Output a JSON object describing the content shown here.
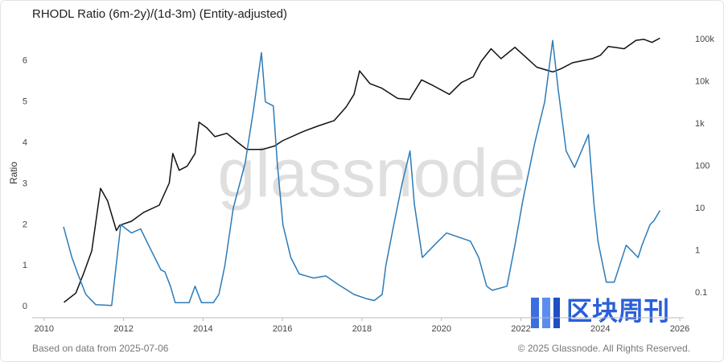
{
  "chart_data": {
    "type": "line",
    "title": "RHODL Ratio (6m-2y)/(1d-3m) (Entity-adjusted)",
    "y_label": "Ratio",
    "watermark": "glassnode",
    "logo_text": "区块周刊",
    "footer_left": "Based on data from 2025-07-06",
    "footer_right": "© 2025 Glassnode. All Rights Reserved.",
    "xlim": [
      2009.7,
      2026.1
    ],
    "xticks": [
      2010,
      2012,
      2014,
      2016,
      2018,
      2020,
      2022,
      2024,
      2026
    ],
    "ylim": [
      -0.27,
      6.7
    ],
    "yticks": [
      0,
      1,
      2,
      3,
      4,
      5,
      6
    ],
    "y2lim": [
      0.026,
      148000
    ],
    "y2scale": "log",
    "y2ticks": [
      0.1,
      1,
      10,
      100,
      {
        "value": 1000,
        "label": "1k"
      },
      {
        "value": 10000,
        "label": "10k"
      },
      {
        "value": 100000,
        "label": "100k"
      }
    ],
    "series": [
      {
        "color": "#2b7bb9",
        "axis": "y",
        "x": [
          2010.49,
          2010.7,
          2010.85,
          2011.05,
          2011.3,
          2011.7,
          2011.93,
          2012.2,
          2012.43,
          2012.63,
          2012.94,
          2013.04,
          2013.18,
          2013.3,
          2013.65,
          2013.8,
          2013.96,
          2014.26,
          2014.4,
          2014.55,
          2014.76,
          2015.06,
          2015.27,
          2015.47,
          2015.57,
          2015.77,
          2015.87,
          2016.01,
          2016.21,
          2016.42,
          2016.78,
          2017.09,
          2017.39,
          2017.8,
          2018.1,
          2018.31,
          2018.51,
          2018.6,
          2018.8,
          2019.01,
          2019.21,
          2019.32,
          2019.52,
          2019.82,
          2020.13,
          2020.43,
          2020.73,
          2020.94,
          2021.14,
          2021.28,
          2021.65,
          2021.85,
          2022.05,
          2022.35,
          2022.6,
          2022.8,
          2022.94,
          2023.14,
          2023.35,
          2023.7,
          2023.84,
          2023.94,
          2024.15,
          2024.35,
          2024.65,
          2024.95,
          2025.05,
          2025.25,
          2025.35,
          2025.5
        ],
        "values": [
          1.95,
          1.2,
          0.8,
          0.3,
          0.05,
          0.03,
          2.0,
          1.8,
          1.9,
          1.5,
          0.9,
          0.85,
          0.5,
          0.1,
          0.1,
          0.5,
          0.1,
          0.1,
          0.3,
          1.0,
          2.4,
          3.5,
          4.8,
          6.2,
          5.0,
          4.9,
          3.5,
          2.0,
          1.2,
          0.8,
          0.7,
          0.75,
          0.55,
          0.3,
          0.2,
          0.15,
          0.3,
          1.0,
          2.0,
          3.0,
          3.8,
          2.5,
          1.2,
          1.5,
          1.8,
          1.7,
          1.6,
          1.2,
          0.5,
          0.4,
          0.5,
          1.5,
          2.6,
          4.0,
          5.0,
          6.5,
          5.3,
          3.8,
          3.4,
          4.2,
          2.5,
          1.6,
          0.6,
          0.6,
          1.5,
          1.2,
          1.5,
          2.0,
          2.1,
          2.35
        ]
      },
      {
        "color": "#111111",
        "axis": "y2",
        "x": [
          2010.5,
          2010.8,
          2011.0,
          2011.2,
          2011.42,
          2011.6,
          2011.82,
          2011.9,
          2012.2,
          2012.5,
          2012.9,
          2013.15,
          2013.24,
          2013.4,
          2013.6,
          2013.8,
          2013.9,
          2014.1,
          2014.3,
          2014.6,
          2014.9,
          2015.1,
          2015.5,
          2015.8,
          2016.0,
          2016.5,
          2016.9,
          2017.3,
          2017.6,
          2017.8,
          2017.94,
          2018.2,
          2018.5,
          2018.9,
          2019.2,
          2019.5,
          2019.8,
          2020.2,
          2020.5,
          2020.8,
          2021.0,
          2021.25,
          2021.5,
          2021.85,
          2022.1,
          2022.4,
          2022.8,
          2023.0,
          2023.3,
          2023.8,
          2024.0,
          2024.2,
          2024.6,
          2024.9,
          2025.1,
          2025.3,
          2025.5
        ],
        "values": [
          0.06,
          0.1,
          0.3,
          1,
          30,
          15,
          3,
          4,
          5,
          8,
          12,
          40,
          200,
          80,
          100,
          200,
          1100,
          800,
          500,
          600,
          350,
          250,
          250,
          300,
          400,
          650,
          900,
          1200,
          2500,
          5000,
          18000,
          9000,
          7000,
          4000,
          3800,
          11000,
          8000,
          5000,
          9500,
          13000,
          30000,
          60000,
          35000,
          65000,
          40000,
          22000,
          17000,
          20000,
          28000,
          35000,
          42000,
          68000,
          60000,
          95000,
          100000,
          85000,
          107000
        ]
      }
    ]
  }
}
